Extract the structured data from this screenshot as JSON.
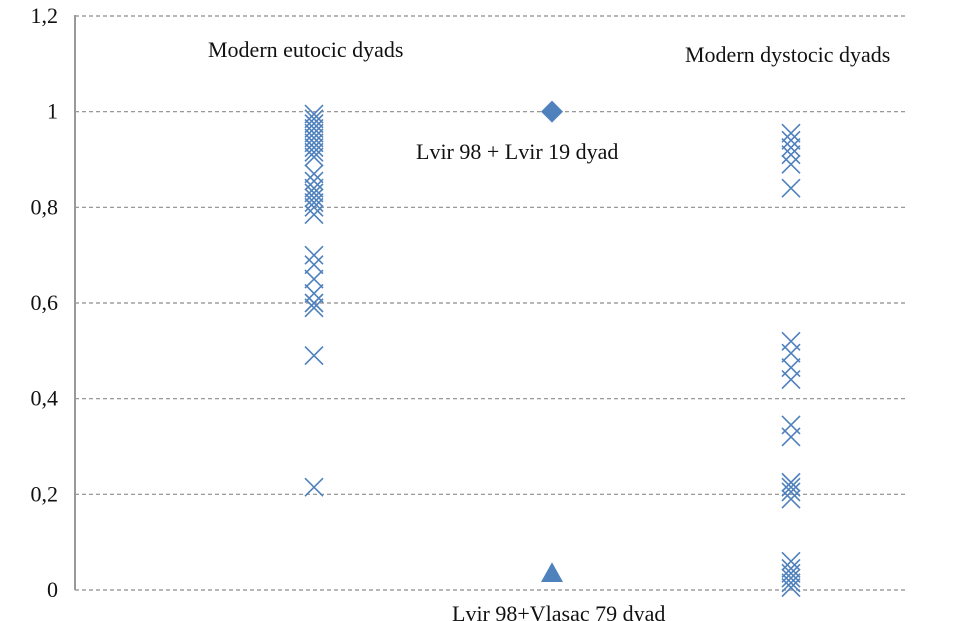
{
  "chart_data": {
    "type": "scatter",
    "ylim": [
      0,
      1.2
    ],
    "y_ticks": [
      "0",
      "0,2",
      "0,4",
      "0,6",
      "0,8",
      "1",
      "1,2"
    ],
    "y_tick_values": [
      0,
      0.2,
      0.4,
      0.6,
      0.8,
      1.0,
      1.2
    ],
    "grid": true,
    "colors": {
      "marker": "#4f81bd",
      "grid": "#8c8c8c",
      "axis": "#999999"
    },
    "series": [
      {
        "marker": "x",
        "x": 1,
        "y": [
          0.995,
          0.985,
          0.975,
          0.965,
          0.955,
          0.945,
          0.935,
          0.925,
          0.915,
          0.905,
          0.87,
          0.855,
          0.84,
          0.83,
          0.82,
          0.81,
          0.8,
          0.785,
          0.7,
          0.68,
          0.65,
          0.62,
          0.6,
          0.59,
          0.49,
          0.215
        ]
      },
      {
        "marker": "x",
        "x": 3,
        "y": [
          0.955,
          0.94,
          0.925,
          0.91,
          0.89,
          0.84,
          0.52,
          0.495,
          0.465,
          0.44,
          0.345,
          0.32,
          0.225,
          0.215,
          0.205,
          0.19,
          0.06,
          0.045,
          0.035,
          0.025,
          0.015,
          0.005
        ]
      },
      {
        "marker": "diamond",
        "x": 2,
        "y": [
          1.0
        ]
      },
      {
        "marker": "triangle",
        "x": 2,
        "y": [
          0.035
        ]
      }
    ],
    "annotations": [
      {
        "text": "Modern eutocic dyads"
      },
      {
        "text": "Modern dystocic dyads"
      },
      {
        "text": "Lvir 98 + Lvir 19 dyad"
      },
      {
        "text": "Lvir 98+Vlasac 79 dyad"
      }
    ]
  }
}
